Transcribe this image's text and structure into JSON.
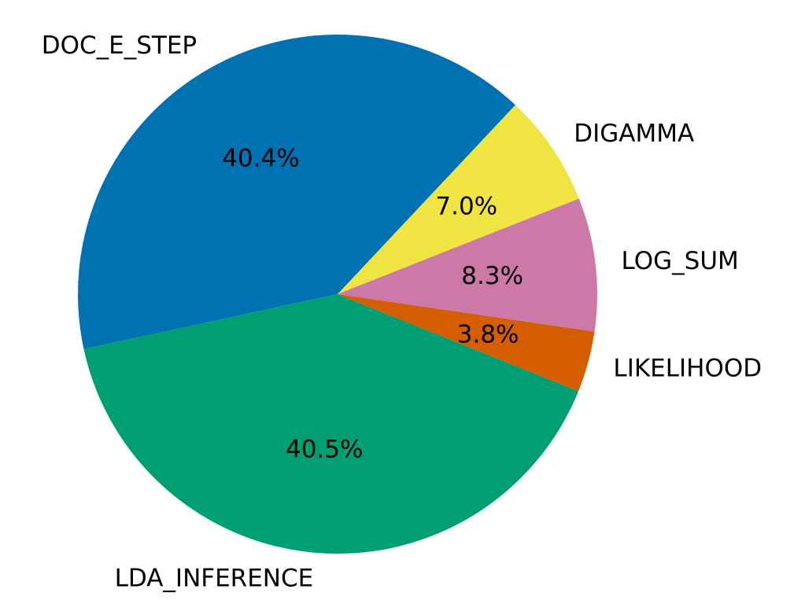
{
  "chart_data": {
    "type": "pie",
    "slices": [
      {
        "label": "DIGAMMA",
        "value": 7.0,
        "pct_label": "7.0%",
        "color": "#f0e442"
      },
      {
        "label": "DOC_E_STEP",
        "value": 40.4,
        "pct_label": "40.4%",
        "color": "#0072b2"
      },
      {
        "label": "LDA_INFERENCE",
        "value": 40.5,
        "pct_label": "40.5%",
        "color": "#009e73"
      },
      {
        "label": "LIKELIHOOD",
        "value": 3.8,
        "pct_label": "3.8%",
        "color": "#d55e00"
      },
      {
        "label": "LOG_SUM",
        "value": 8.3,
        "pct_label": "8.3%",
        "color": "#cc79a7"
      }
    ],
    "legend": "none"
  }
}
